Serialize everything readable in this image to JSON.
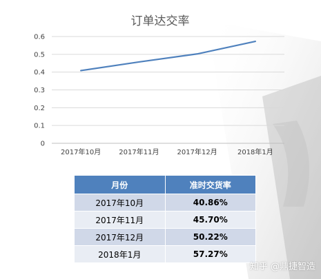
{
  "chart_data": {
    "type": "line",
    "title": "订单达交率",
    "categories": [
      "2017年10月",
      "2017年11月",
      "2017年12月",
      "2018年1月"
    ],
    "series": [
      {
        "values": [
          0.4086,
          0.457,
          0.5022,
          0.5727
        ],
        "color": "#4f81bd"
      }
    ],
    "ylim": [
      0,
      0.6
    ],
    "yticks": [
      "0",
      "0.1",
      "0.2",
      "0.3",
      "0.4",
      "0.5",
      "0.6"
    ],
    "grid": true,
    "legend": "none"
  },
  "table": {
    "headers": [
      "月份",
      "准时交货率"
    ],
    "rows": [
      [
        "2017年10月",
        "40.86%"
      ],
      [
        "2017年11月",
        "45.70%"
      ],
      [
        "2017年12月",
        "50.22%"
      ],
      [
        "2018年1月",
        "57.27%"
      ]
    ]
  },
  "watermark": "知乎 @鼎捷智造"
}
